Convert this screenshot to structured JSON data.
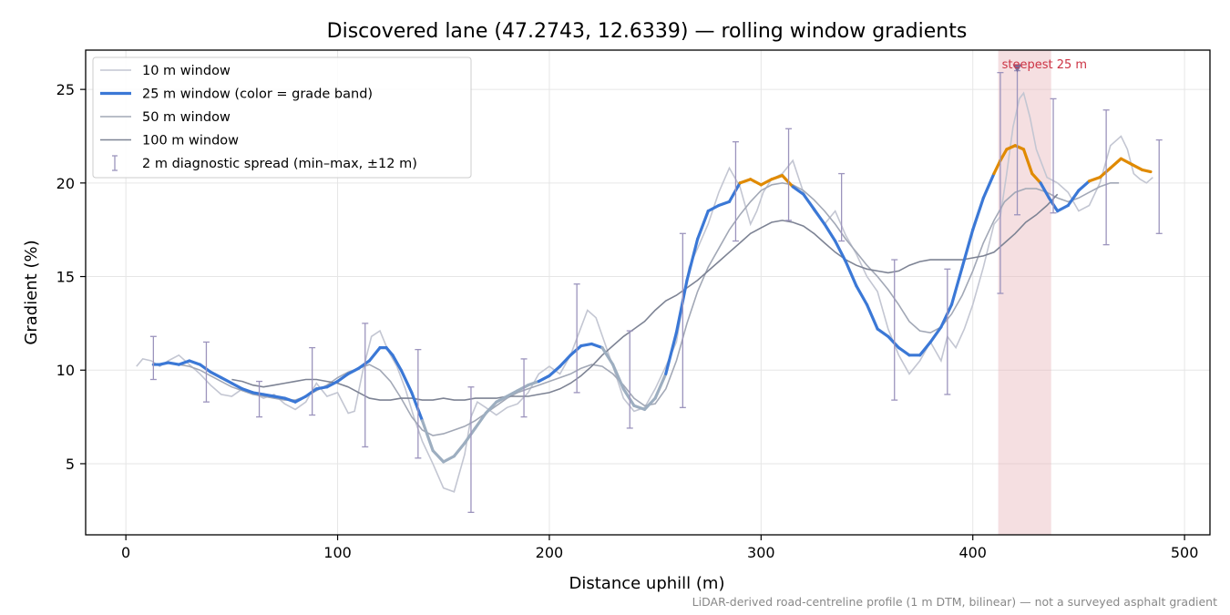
{
  "chart_data": {
    "type": "line",
    "title": "Discovered lane (47.2743, 12.6339) — rolling window gradients",
    "xlabel": "Distance uphill (m)",
    "ylabel": "Gradient (%)",
    "xlim": [
      -19,
      512
    ],
    "ylim": [
      1.2,
      27.1
    ],
    "xticks": [
      0,
      100,
      200,
      300,
      400,
      500
    ],
    "yticks": [
      5,
      10,
      15,
      20,
      25
    ],
    "grid": true,
    "legend_position": "top-left",
    "footnote": "LiDAR-derived road-centreline profile (1 m DTM, bilinear) — not a surveyed asphalt gradient",
    "highlight": {
      "x0": 412,
      "x1": 437,
      "color": "#e9b7bd",
      "label": "steepest 25 m",
      "marker_x": 421,
      "marker_y": 26.1
    },
    "colors": {
      "w10": "#c3c6d2",
      "w25_base": "#3b78d6",
      "w25_steep": "#e08a00",
      "w25_gray": "#9daec0",
      "w50": "#a2a8b6",
      "w100": "#7d8394",
      "errbar": "#9c94bd"
    },
    "grade_band_threshold": 20,
    "series": [
      {
        "name": "10 m window",
        "x": [
          5,
          8,
          12,
          16,
          20,
          25,
          30,
          35,
          40,
          45,
          50,
          55,
          60,
          65,
          70,
          75,
          80,
          85,
          90,
          95,
          100,
          105,
          108,
          112,
          116,
          120,
          124,
          128,
          132,
          136,
          140,
          145,
          150,
          155,
          160,
          163,
          166,
          170,
          175,
          180,
          185,
          190,
          195,
          200,
          205,
          210,
          214,
          218,
          222,
          226,
          230,
          235,
          240,
          245,
          250,
          255,
          260,
          263,
          266,
          270,
          275,
          280,
          285,
          290,
          295,
          298,
          301,
          305,
          310,
          315,
          320,
          325,
          330,
          335,
          340,
          345,
          350,
          355,
          360,
          365,
          370,
          375,
          380,
          385,
          388,
          392,
          396,
          400,
          405,
          410,
          413,
          416,
          419,
          422,
          424,
          427,
          430,
          435,
          440,
          445,
          450,
          455,
          460,
          465,
          470,
          473,
          476,
          479,
          482,
          485
        ],
        "y": [
          10.2,
          10.6,
          10.5,
          10.2,
          10.5,
          10.8,
          10.3,
          9.8,
          9.2,
          8.7,
          8.6,
          9.0,
          8.8,
          8.5,
          8.7,
          8.2,
          7.9,
          8.3,
          9.3,
          8.6,
          8.8,
          7.7,
          7.8,
          10.0,
          11.8,
          12.1,
          11.0,
          10.2,
          9.0,
          7.5,
          6.2,
          5.0,
          3.7,
          3.5,
          5.5,
          7.5,
          8.3,
          8.0,
          7.6,
          8.0,
          8.2,
          8.8,
          9.8,
          10.2,
          9.8,
          10.8,
          12.0,
          13.2,
          12.8,
          11.5,
          10.2,
          8.5,
          7.8,
          8.0,
          9.0,
          10.2,
          11.5,
          13.5,
          15.5,
          16.5,
          17.8,
          19.5,
          20.8,
          19.8,
          17.8,
          18.5,
          19.5,
          20.2,
          20.5,
          21.2,
          19.5,
          18.5,
          17.8,
          18.5,
          17.2,
          16.2,
          15.0,
          14.2,
          12.2,
          10.8,
          9.8,
          10.5,
          11.5,
          10.5,
          11.8,
          11.2,
          12.2,
          13.5,
          15.5,
          17.8,
          18.2,
          20.5,
          23.0,
          24.5,
          24.8,
          23.5,
          21.8,
          20.3,
          20.0,
          19.5,
          18.5,
          18.8,
          20.0,
          22.0,
          22.5,
          21.8,
          20.5,
          20.2,
          20.0,
          20.3
        ]
      },
      {
        "name": "25 m window (color = grade band)",
        "x": [
          13,
          16,
          20,
          25,
          30,
          35,
          40,
          45,
          50,
          55,
          60,
          65,
          70,
          75,
          80,
          85,
          90,
          95,
          100,
          105,
          110,
          115,
          120,
          123,
          126,
          130,
          135,
          140,
          145,
          150,
          155,
          160,
          165,
          170,
          175,
          180,
          185,
          190,
          195,
          200,
          205,
          210,
          215,
          220,
          225,
          230,
          235,
          240,
          245,
          250,
          255,
          260,
          265,
          270,
          275,
          280,
          285,
          290,
          295,
          300,
          305,
          310,
          315,
          320,
          325,
          330,
          335,
          340,
          345,
          350,
          355,
          360,
          365,
          370,
          375,
          380,
          385,
          390,
          395,
          400,
          405,
          410,
          413,
          416,
          420,
          424,
          428,
          432,
          436,
          440,
          445,
          450,
          455,
          460,
          465,
          470,
          475,
          480,
          484
        ],
        "y": [
          10.3,
          10.3,
          10.4,
          10.3,
          10.5,
          10.3,
          9.9,
          9.6,
          9.3,
          9.0,
          8.8,
          8.7,
          8.6,
          8.5,
          8.3,
          8.6,
          9.0,
          9.1,
          9.4,
          9.8,
          10.1,
          10.5,
          11.2,
          11.2,
          10.8,
          10.0,
          8.8,
          7.3,
          5.7,
          5.1,
          5.4,
          6.1,
          6.9,
          7.7,
          8.3,
          8.6,
          8.9,
          9.2,
          9.4,
          9.7,
          10.2,
          10.8,
          11.3,
          11.4,
          11.2,
          10.3,
          9.0,
          8.1,
          7.9,
          8.5,
          9.8,
          12.0,
          14.8,
          17.0,
          18.5,
          18.8,
          19.0,
          20.0,
          20.2,
          19.9,
          20.2,
          20.4,
          19.8,
          19.4,
          18.6,
          17.8,
          16.9,
          15.8,
          14.5,
          13.5,
          12.2,
          11.8,
          11.2,
          10.8,
          10.8,
          11.5,
          12.3,
          13.5,
          15.5,
          17.5,
          19.2,
          20.5,
          21.2,
          21.8,
          22.0,
          21.8,
          20.5,
          20.0,
          19.2,
          18.5,
          18.8,
          19.6,
          20.1,
          20.3,
          20.8,
          21.3,
          21.0,
          20.7,
          20.6
        ]
      },
      {
        "name": "50 m window",
        "x": [
          25,
          30,
          35,
          40,
          45,
          50,
          55,
          60,
          65,
          70,
          75,
          80,
          85,
          90,
          95,
          100,
          105,
          110,
          115,
          120,
          125,
          130,
          135,
          140,
          145,
          150,
          155,
          160,
          165,
          170,
          175,
          180,
          185,
          190,
          195,
          200,
          205,
          210,
          215,
          220,
          225,
          230,
          235,
          240,
          245,
          250,
          255,
          260,
          265,
          270,
          275,
          280,
          285,
          290,
          295,
          300,
          305,
          310,
          315,
          320,
          325,
          330,
          335,
          340,
          345,
          350,
          355,
          360,
          365,
          370,
          375,
          380,
          385,
          390,
          395,
          400,
          405,
          410,
          415,
          420,
          425,
          430,
          435,
          440,
          445,
          450,
          455,
          460,
          465,
          469
        ],
        "y": [
          10.3,
          10.2,
          10.0,
          9.7,
          9.4,
          9.1,
          8.9,
          8.7,
          8.6,
          8.5,
          8.4,
          8.4,
          8.6,
          8.9,
          9.2,
          9.6,
          9.9,
          10.1,
          10.3,
          10.0,
          9.4,
          8.5,
          7.5,
          6.8,
          6.5,
          6.6,
          6.8,
          7.0,
          7.3,
          7.7,
          8.1,
          8.5,
          8.8,
          9.0,
          9.2,
          9.4,
          9.6,
          9.8,
          10.1,
          10.3,
          10.2,
          9.8,
          9.2,
          8.5,
          8.1,
          8.2,
          9.0,
          10.5,
          12.5,
          14.2,
          15.5,
          16.5,
          17.5,
          18.3,
          19.0,
          19.6,
          19.9,
          20.0,
          19.9,
          19.6,
          19.1,
          18.5,
          17.8,
          17.0,
          16.3,
          15.6,
          15.0,
          14.3,
          13.5,
          12.6,
          12.1,
          12.0,
          12.3,
          13.0,
          14.0,
          15.3,
          16.8,
          18.0,
          19.0,
          19.5,
          19.7,
          19.7,
          19.5,
          19.2,
          19.0,
          19.2,
          19.5,
          19.8,
          20.0,
          20.0
        ]
      },
      {
        "name": "100 m window",
        "x": [
          50,
          55,
          60,
          65,
          70,
          75,
          80,
          85,
          90,
          95,
          100,
          105,
          110,
          115,
          120,
          125,
          130,
          135,
          140,
          145,
          150,
          155,
          160,
          165,
          170,
          175,
          180,
          185,
          190,
          195,
          200,
          205,
          210,
          215,
          220,
          225,
          230,
          235,
          240,
          245,
          250,
          255,
          260,
          265,
          270,
          275,
          280,
          285,
          290,
          295,
          300,
          305,
          310,
          315,
          320,
          325,
          330,
          335,
          340,
          345,
          350,
          355,
          360,
          365,
          370,
          375,
          380,
          385,
          390,
          395,
          400,
          405,
          410,
          415,
          420,
          425,
          430,
          435,
          440
        ],
        "y": [
          9.5,
          9.4,
          9.2,
          9.1,
          9.2,
          9.3,
          9.4,
          9.5,
          9.5,
          9.4,
          9.3,
          9.1,
          8.8,
          8.5,
          8.4,
          8.4,
          8.5,
          8.5,
          8.4,
          8.4,
          8.5,
          8.4,
          8.4,
          8.5,
          8.5,
          8.5,
          8.6,
          8.6,
          8.6,
          8.7,
          8.8,
          9.0,
          9.3,
          9.7,
          10.2,
          10.8,
          11.3,
          11.8,
          12.2,
          12.6,
          13.2,
          13.7,
          14.0,
          14.4,
          14.8,
          15.3,
          15.8,
          16.3,
          16.8,
          17.3,
          17.6,
          17.9,
          18.0,
          17.9,
          17.7,
          17.3,
          16.8,
          16.3,
          15.9,
          15.6,
          15.4,
          15.3,
          15.2,
          15.3,
          15.6,
          15.8,
          15.9,
          15.9,
          15.9,
          15.9,
          16.0,
          16.1,
          16.3,
          16.8,
          17.3,
          17.9,
          18.3,
          18.8,
          19.4
        ]
      },
      {
        "name": "2 m diagnostic spread (min–max, ±12 m)",
        "type": "errorbar",
        "points": [
          {
            "x": 13,
            "min": 9.5,
            "max": 11.8
          },
          {
            "x": 38,
            "min": 8.3,
            "max": 11.5
          },
          {
            "x": 63,
            "min": 7.5,
            "max": 9.4
          },
          {
            "x": 88,
            "min": 7.6,
            "max": 11.2
          },
          {
            "x": 113,
            "min": 5.9,
            "max": 12.5
          },
          {
            "x": 138,
            "min": 5.3,
            "max": 11.1
          },
          {
            "x": 163,
            "min": 2.4,
            "max": 9.1
          },
          {
            "x": 188,
            "min": 7.5,
            "max": 10.6
          },
          {
            "x": 213,
            "min": 8.8,
            "max": 14.6
          },
          {
            "x": 238,
            "min": 6.9,
            "max": 12.1
          },
          {
            "x": 263,
            "min": 8.0,
            "max": 17.3
          },
          {
            "x": 288,
            "min": 16.9,
            "max": 22.2
          },
          {
            "x": 313,
            "min": 18.0,
            "max": 22.9
          },
          {
            "x": 338,
            "min": 16.9,
            "max": 20.5
          },
          {
            "x": 363,
            "min": 8.4,
            "max": 15.9
          },
          {
            "x": 388,
            "min": 8.7,
            "max": 15.4
          },
          {
            "x": 413,
            "min": 14.1,
            "max": 25.9
          },
          {
            "x": 421,
            "min": 18.3,
            "max": 26.0
          },
          {
            "x": 438,
            "min": 18.4,
            "max": 24.5
          },
          {
            "x": 463,
            "min": 16.7,
            "max": 23.9
          },
          {
            "x": 488,
            "min": 17.3,
            "max": 22.3
          }
        ]
      }
    ]
  }
}
